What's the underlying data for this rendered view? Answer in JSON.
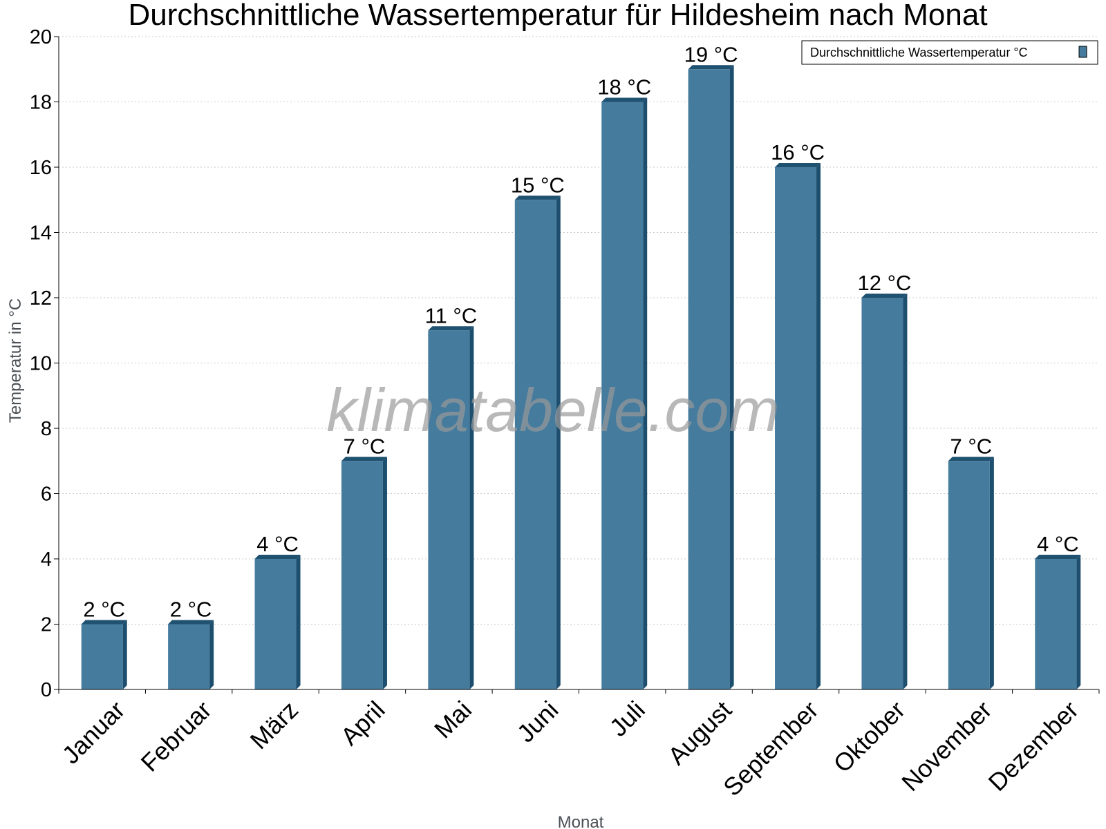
{
  "chart_data": {
    "type": "bar",
    "title": "Durchschnittliche Wassertemperatur für Hildesheim nach Monat",
    "xlabel": "Monat",
    "ylabel": "Temperatur in °C",
    "categories": [
      "Januar",
      "Februar",
      "März",
      "April",
      "Mai",
      "Juni",
      "Juli",
      "August",
      "September",
      "Oktober",
      "November",
      "Dezember"
    ],
    "series": [
      {
        "name": "Durchschnittliche Wassertemperatur °C",
        "values": [
          2,
          2,
          4,
          7,
          11,
          15,
          18,
          19,
          16,
          12,
          7,
          4
        ],
        "labels": [
          "2 °C",
          "2 °C",
          "4 °C",
          "7 °C",
          "11 °C",
          "15 °C",
          "18 °C",
          "19 °C",
          "16 °C",
          "12 °C",
          "7 °C",
          "4 °C"
        ]
      }
    ],
    "ylim": [
      0,
      20
    ],
    "yticks": [
      0,
      2,
      4,
      6,
      8,
      10,
      12,
      14,
      16,
      18,
      20
    ],
    "grid": true,
    "legend_position": "top-right",
    "watermark": "klimatabelle.com",
    "colors": {
      "bar_front": "#457b9d",
      "bar_side": "#1d4e6e",
      "bar_top": "#1f5170",
      "grid": "#c8c8c8"
    }
  }
}
